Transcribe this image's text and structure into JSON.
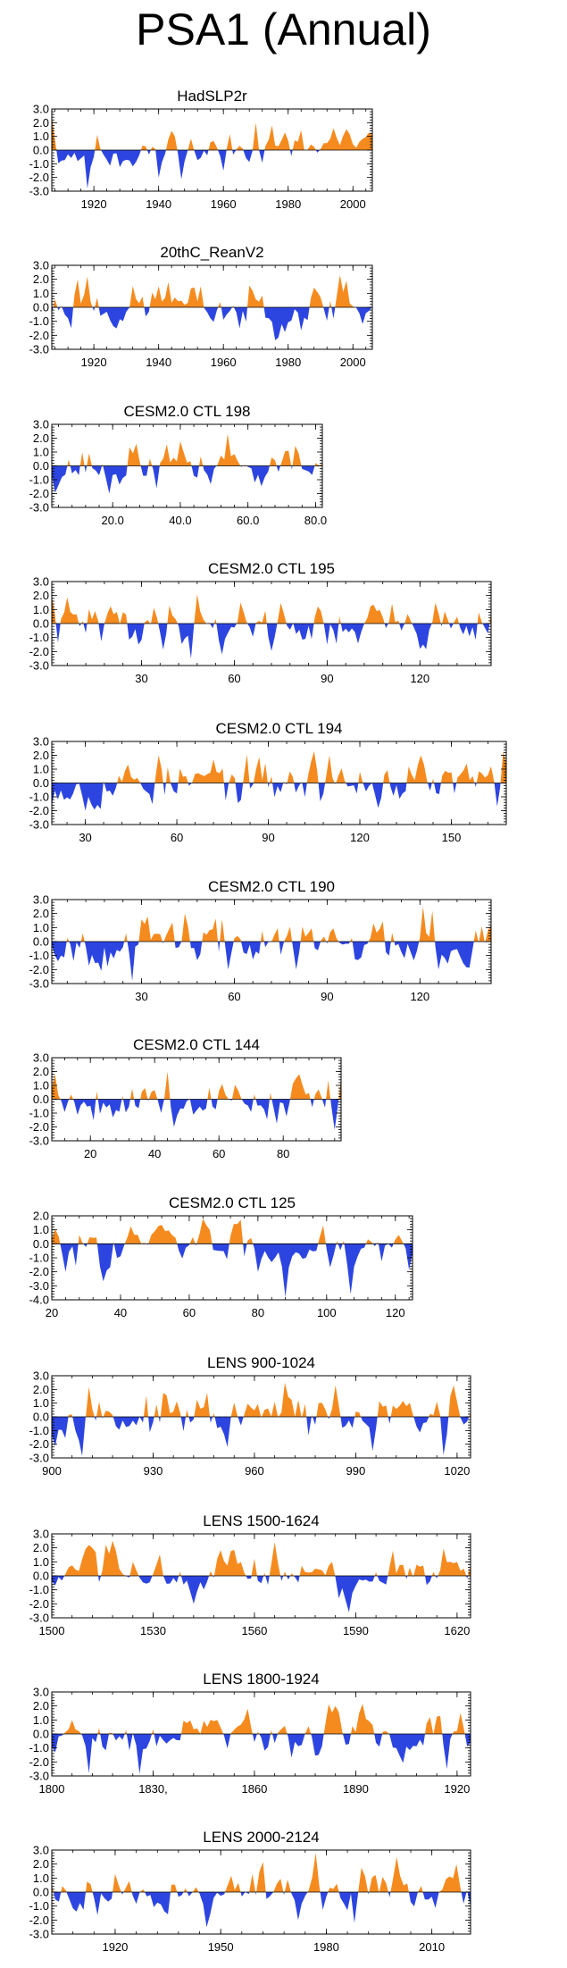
{
  "figure_title": "PSA1 (Annual)",
  "colors": {
    "positive": "#f58b1f",
    "negative": "#2d45e0",
    "axis": "#000000"
  },
  "chart_data": [
    {
      "type": "area",
      "title": "HadSLP2r",
      "x_start": 1907,
      "x_end": 2006,
      "xticks": [
        1920,
        1940,
        1960,
        1980,
        2000
      ],
      "xtick_labels": [
        "1920",
        "1940",
        "1960",
        "1980",
        "2000"
      ],
      "yticks": [
        3.0,
        2.0,
        1.0,
        0.0,
        -1.0,
        -2.0,
        -3.0
      ],
      "ytick_labels": [
        "3.0",
        "2.0",
        "1.0",
        "0.0",
        "-1.0",
        "-2.0",
        "-3.0"
      ],
      "ylim": [
        -3.0,
        3.0
      ],
      "seed": 11,
      "extrema": [
        [
          1907,
          2.5
        ],
        [
          1918,
          -2.8
        ],
        [
          1940,
          -2.0
        ],
        [
          1944,
          1.4
        ],
        [
          1960,
          -1.5
        ],
        [
          1970,
          2.0
        ],
        [
          1975,
          1.8
        ],
        [
          1994,
          1.6
        ]
      ]
    },
    {
      "type": "area",
      "title": "20thC_ReanV2",
      "x_start": 1907,
      "x_end": 2006,
      "xticks": [
        1920,
        1940,
        1960,
        1980,
        2000
      ],
      "xtick_labels": [
        "1920",
        "1940",
        "1960",
        "1980",
        "2000"
      ],
      "yticks": [
        3.0,
        2.0,
        1.0,
        0.0,
        -1.0,
        -2.0,
        -3.0
      ],
      "ytick_labels": [
        "3.0",
        "2.0",
        "1.0",
        "0.0",
        "-1.0",
        "-2.0",
        "-3.0"
      ],
      "ylim": [
        -3.0,
        3.0
      ],
      "seed": 23,
      "extrema": [
        [
          1915,
          2.0
        ],
        [
          1918,
          2.2
        ],
        [
          1940,
          1.5
        ],
        [
          1943,
          1.8
        ],
        [
          1965,
          -1.5
        ],
        [
          1996,
          2.3
        ],
        [
          1998,
          1.9
        ],
        [
          2003,
          -1.2
        ]
      ]
    },
    {
      "type": "area",
      "title": "CESM2.0 CTL 198",
      "x_start": 2,
      "x_end": 82,
      "xticks": [
        20,
        40,
        60,
        80
      ],
      "xtick_labels": [
        "20.0",
        "40.0",
        "60.0",
        "80.0"
      ],
      "yticks": [
        3.0,
        2.0,
        1.0,
        0.0,
        -1.0,
        -2.0,
        -3.0
      ],
      "ytick_labels": [
        "3.0",
        "2.0",
        "1.0",
        "0.0",
        "-1.0",
        "-2.0",
        "-3.0"
      ],
      "ylim": [
        -3.0,
        3.0
      ],
      "seed": 37,
      "extrema": [
        [
          19,
          -2.0
        ],
        [
          27,
          1.6
        ],
        [
          54,
          2.3
        ],
        [
          62,
          -1.2
        ]
      ]
    },
    {
      "type": "area",
      "title": "CESM2.0 CTL 195",
      "x_start": 1,
      "x_end": 143,
      "xticks": [
        30,
        60,
        90,
        120
      ],
      "xtick_labels": [
        "30",
        "60",
        "90",
        "120"
      ],
      "yticks": [
        3.0,
        2.0,
        1.0,
        0.0,
        -1.0,
        -2.0,
        -3.0
      ],
      "ytick_labels": [
        "3.0",
        "2.0",
        "1.0",
        "0.0",
        "-1.0",
        "-2.0",
        "-3.0"
      ],
      "ylim": [
        -3.0,
        3.0
      ],
      "seed": 41,
      "extrema": [
        [
          1,
          2.0
        ],
        [
          46,
          -2.5
        ],
        [
          48,
          2.1
        ],
        [
          56,
          -2.2
        ],
        [
          62,
          1.5
        ],
        [
          90,
          -1.5
        ]
      ]
    },
    {
      "type": "area",
      "title": "CESM2.0 CTL 194",
      "x_start": 19,
      "x_end": 168,
      "xticks": [
        30,
        60,
        90,
        120,
        150
      ],
      "xtick_labels": [
        "30",
        "60",
        "90",
        "120",
        "150"
      ],
      "yticks": [
        3.0,
        2.0,
        1.0,
        0.0,
        -1.0,
        -2.0,
        -3.0
      ],
      "ytick_labels": [
        "3.0",
        "2.0",
        "1.0",
        "0.0",
        "-1.0",
        "-2.0",
        "-3.0"
      ],
      "ylim": [
        -3.0,
        3.0
      ],
      "seed": 53,
      "extrema": [
        [
          30,
          -2.0
        ],
        [
          54,
          2.0
        ],
        [
          72,
          1.7
        ],
        [
          105,
          2.3
        ],
        [
          110,
          2.0
        ],
        [
          140,
          2.0
        ],
        [
          167,
          2.3
        ],
        [
          165,
          -1.7
        ]
      ]
    },
    {
      "type": "area",
      "title": "CESM2.0 CTL 190",
      "x_start": 1,
      "x_end": 143,
      "xticks": [
        30,
        60,
        90,
        120
      ],
      "xtick_labels": [
        "30",
        "60",
        "90",
        "120"
      ],
      "yticks": [
        3.0,
        2.0,
        1.0,
        0.0,
        -1.0,
        -2.0,
        -3.0
      ],
      "ytick_labels": [
        "3.0",
        "2.0",
        "1.0",
        "0.0",
        "-1.0",
        "-2.0",
        "-3.0"
      ],
      "ylim": [
        -3.0,
        3.0
      ],
      "seed": 67,
      "extrema": [
        [
          27,
          -2.8
        ],
        [
          44,
          2.0
        ],
        [
          58,
          -2.0
        ],
        [
          80,
          -2.0
        ],
        [
          121,
          2.5
        ],
        [
          124,
          2.2
        ],
        [
          126,
          -2.0
        ]
      ]
    },
    {
      "type": "area",
      "title": "CESM2.0 CTL 144",
      "x_start": 8,
      "x_end": 98,
      "xticks": [
        20,
        40,
        60,
        80
      ],
      "xtick_labels": [
        "20",
        "40",
        "60",
        "80"
      ],
      "yticks": [
        3.0,
        2.0,
        1.0,
        0.0,
        -1.0,
        -2.0,
        -3.0
      ],
      "ytick_labels": [
        "3.0",
        "2.0",
        "1.0",
        "0.0",
        "-1.0",
        "-2.0",
        "-3.0"
      ],
      "ylim": [
        -3.0,
        3.0
      ],
      "seed": 79,
      "extrema": [
        [
          9,
          1.8
        ],
        [
          44,
          2.0
        ],
        [
          46,
          -2.0
        ],
        [
          85,
          1.8
        ],
        [
          96,
          -2.2
        ]
      ]
    },
    {
      "type": "area",
      "title": "CESM2.0 CTL 125",
      "x_start": 20,
      "x_end": 125,
      "xticks": [
        20,
        40,
        60,
        80,
        100,
        120
      ],
      "xtick_labels": [
        "20",
        "40",
        "60",
        "80",
        "100",
        "120"
      ],
      "yticks": [
        2.0,
        1.0,
        0.0,
        -1.0,
        -2.0,
        -3.0,
        -4.0
      ],
      "ytick_labels": [
        "2.0",
        "1.0",
        "0.0",
        "-1.0",
        "-2.0",
        "-3.0",
        "-4.0"
      ],
      "ylim": [
        -4.0,
        2.0
      ],
      "seed": 83,
      "extrema": [
        [
          24,
          -2.0
        ],
        [
          64,
          1.8
        ],
        [
          80,
          -2.0
        ],
        [
          88,
          -3.8
        ],
        [
          107,
          -3.6
        ],
        [
          99,
          1.3
        ]
      ]
    },
    {
      "type": "area",
      "title": "LENS 900-1024",
      "x_start": 900,
      "x_end": 1024,
      "xticks": [
        900,
        930,
        960,
        990,
        1020
      ],
      "xtick_labels": [
        "900",
        "930",
        "960",
        "990",
        "1020"
      ],
      "yticks": [
        3.0,
        2.0,
        1.0,
        0.0,
        -1.0,
        -2.0,
        -3.0
      ],
      "ytick_labels": [
        "3.0",
        "2.0",
        "1.0",
        "0.0",
        "-1.0",
        "-2.0",
        "-3.0"
      ],
      "ylim": [
        -3.0,
        3.0
      ],
      "seed": 97,
      "extrema": [
        [
          911,
          2.2
        ],
        [
          969,
          2.5
        ],
        [
          952,
          -2.2
        ],
        [
          995,
          -2.5
        ],
        [
          1016,
          -2.8
        ],
        [
          1019,
          2.3
        ]
      ]
    },
    {
      "type": "area",
      "title": "LENS 1500-1624",
      "x_start": 1500,
      "x_end": 1624,
      "xticks": [
        1500,
        1530,
        1560,
        1590,
        1620
      ],
      "xtick_labels": [
        "1500",
        "1530",
        "1560",
        "1590",
        "1620"
      ],
      "yticks": [
        3.0,
        2.0,
        1.0,
        0.0,
        -1.0,
        -2.0,
        -3.0
      ],
      "ytick_labels": [
        "3.0",
        "2.0",
        "1.0",
        "0.0",
        "-1.0",
        "-2.0",
        "-3.0"
      ],
      "ylim": [
        -3.0,
        3.0
      ],
      "seed": 103,
      "extrema": [
        [
          1518,
          2.5
        ],
        [
          1542,
          -2.0
        ],
        [
          1566,
          2.4
        ],
        [
          1588,
          -2.6
        ],
        [
          1601,
          1.8
        ]
      ]
    },
    {
      "type": "area",
      "title": "LENS 1800-1924",
      "x_start": 1800,
      "x_end": 1924,
      "xticks": [
        1800,
        1830,
        1860,
        1890,
        1920
      ],
      "xtick_labels": [
        "1800",
        "1830,",
        "1860",
        "1890",
        "1920"
      ],
      "yticks": [
        3.0,
        2.0,
        1.0,
        0.0,
        -1.0,
        -2.0,
        -3.0
      ],
      "ytick_labels": [
        "3.0",
        "2.0",
        "1.0",
        "0.0",
        "-1.0",
        "-2.0",
        "-3.0"
      ],
      "ylim": [
        -3.0,
        3.0
      ],
      "seed": 109,
      "extrema": [
        [
          1811,
          -2.8
        ],
        [
          1826,
          -3.0
        ],
        [
          1858,
          1.8
        ],
        [
          1884,
          2.0
        ],
        [
          1917,
          -2.5
        ],
        [
          1921,
          1.5
        ]
      ]
    },
    {
      "type": "area",
      "title": "LENS 2000-2124",
      "x_start": 1902,
      "x_end": 2021,
      "xticks": [
        1920,
        1950,
        1980,
        2010
      ],
      "xtick_labels": [
        "1920",
        "1950",
        "1980",
        "2010"
      ],
      "yticks": [
        3.0,
        2.0,
        1.0,
        0.0,
        -1.0,
        -2.0,
        -3.0
      ],
      "ytick_labels": [
        "3.0",
        "2.0",
        "1.0",
        "0.0",
        "-1.0",
        "-2.0",
        "-3.0"
      ],
      "ylim": [
        -3.0,
        3.0
      ],
      "seed": 127,
      "extrema": [
        [
          1946,
          -2.5
        ],
        [
          1977,
          2.8
        ],
        [
          1972,
          -2.0
        ],
        [
          2000,
          2.5
        ],
        [
          2017,
          2.0
        ],
        [
          1988,
          -2.2
        ]
      ]
    }
  ]
}
